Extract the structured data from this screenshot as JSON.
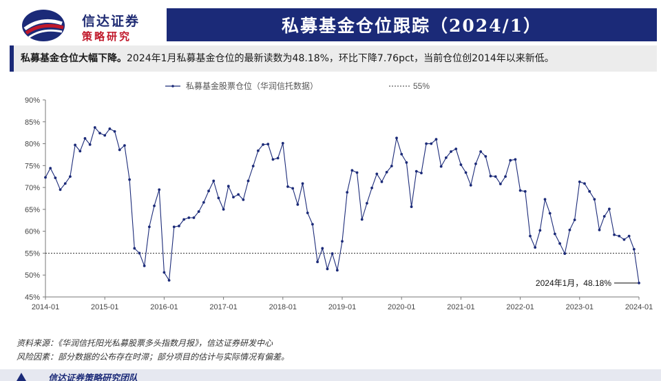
{
  "logo": {
    "line1": "信达证券",
    "line2": "策略研究"
  },
  "header": {
    "title": "私募基金仓位跟踪（2024/1）"
  },
  "summary": {
    "lead": "私募基金仓位大幅下降。",
    "text": "2024年1月私募基金仓位的最新读数为48.18%，环比下降7.76pct，当前仓位创2014年以来新低。"
  },
  "chart_data": {
    "type": "line",
    "ylim": [
      45,
      90
    ],
    "yticks": [
      "45%",
      "50%",
      "55%",
      "60%",
      "65%",
      "70%",
      "75%",
      "80%",
      "85%",
      "90%"
    ],
    "x_start": "2014-01",
    "xticks": [
      "2014-01",
      "2015-01",
      "2016-01",
      "2017-01",
      "2018-01",
      "2019-01",
      "2020-01",
      "2021-01",
      "2022-01",
      "2023-01",
      "2024-01"
    ],
    "legend_position": "top",
    "grid": false,
    "series": [
      {
        "name": "私募基金股票仓位（华润信托数据）",
        "color": "#1b2a78",
        "values": [
          72.3,
          74.4,
          72.2,
          69.5,
          70.9,
          72.5,
          79.7,
          78.3,
          81.2,
          79.8,
          83.7,
          82.4,
          81.9,
          83.4,
          82.8,
          78.6,
          79.6,
          71.8,
          56.1,
          55.0,
          52.1,
          61.0,
          65.8,
          69.5,
          50.6,
          48.8,
          61.0,
          61.2,
          62.7,
          63.1,
          63.1,
          64.5,
          66.6,
          69.2,
          71.5,
          67.6,
          65.0,
          70.3,
          67.8,
          68.4,
          67.2,
          71.5,
          74.9,
          78.4,
          79.8,
          79.9,
          76.4,
          76.7,
          80.1,
          70.2,
          69.8,
          66.1,
          70.9,
          64.2,
          61.6,
          53.0,
          56.1,
          51.4,
          54.9,
          51.1,
          57.7,
          68.9,
          73.9,
          73.4,
          62.7,
          66.4,
          69.9,
          73.1,
          71.3,
          73.5,
          74.9,
          81.3,
          77.6,
          75.7,
          65.6,
          73.7,
          73.3,
          80.0,
          80.0,
          81.0,
          74.8,
          76.8,
          78.2,
          78.8,
          75.2,
          73.4,
          70.5,
          75.4,
          78.2,
          77.1,
          72.6,
          72.5,
          70.8,
          72.5,
          76.2,
          76.4,
          69.3,
          69.1,
          58.9,
          56.3,
          60.2,
          67.3,
          64.1,
          59.4,
          57.2,
          54.9,
          60.3,
          62.6,
          71.3,
          70.9,
          69.1,
          67.3,
          60.3,
          63.4,
          65.1,
          59.2,
          58.9,
          58.1,
          58.9,
          55.9,
          48.18
        ]
      }
    ],
    "reference_line": {
      "name": "55%",
      "value": 55,
      "color": "#333333"
    },
    "annotation": {
      "text": "2024年1月，48.18%",
      "x": "2024-01",
      "y": 48.18
    }
  },
  "footer": {
    "source": "资料来源：《华润信托阳光私募股票多头指数月报》，信达证券研发中心",
    "risk": "风险因素：部分数据的公布存在时滞；部分项目的估计与实际情况有偏差。"
  },
  "bottom": {
    "label": "信达证券策略研究团队"
  }
}
